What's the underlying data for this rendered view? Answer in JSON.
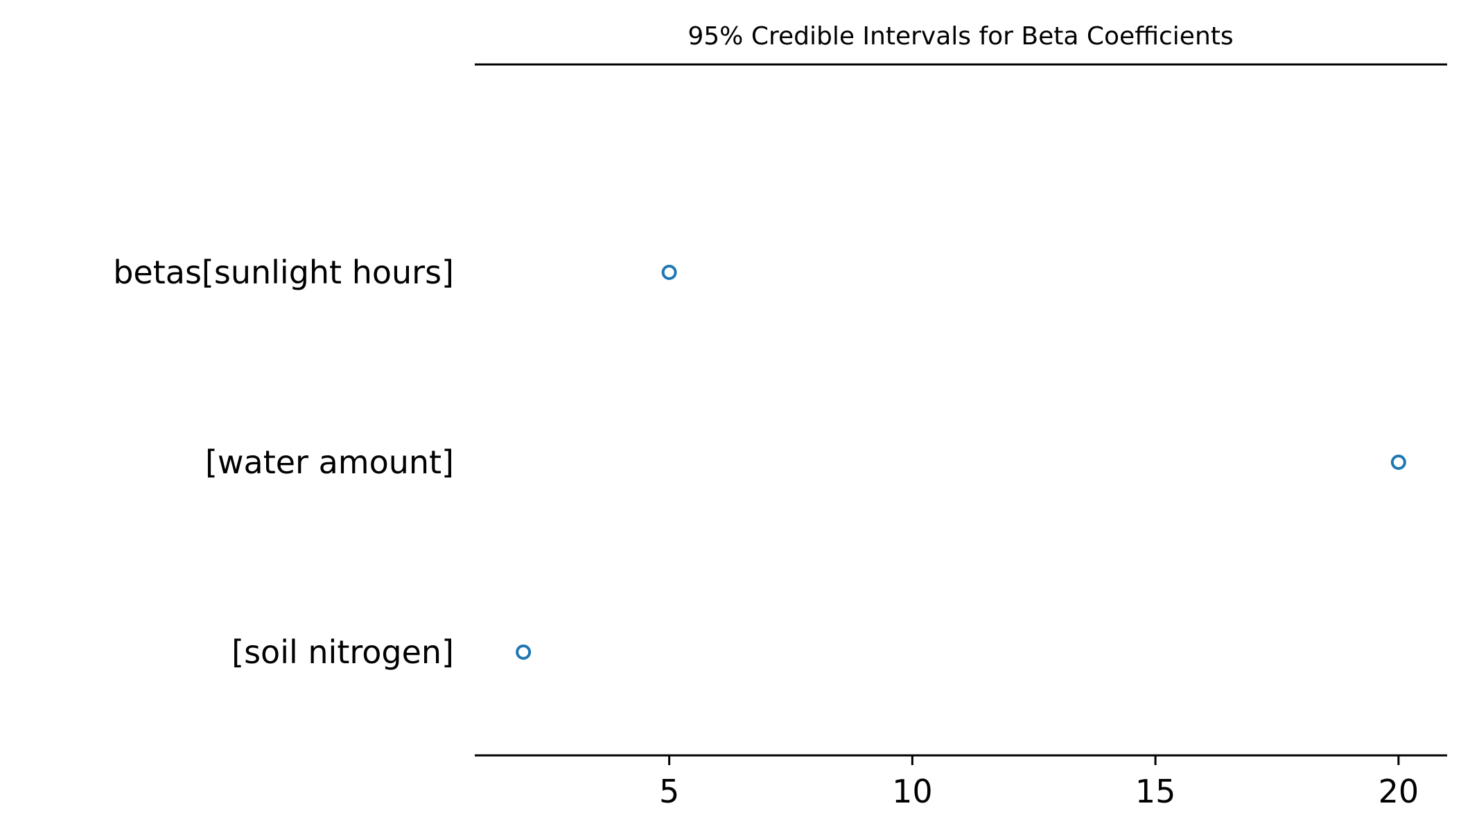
{
  "chart_data": {
    "type": "scatter",
    "title": "95% Credible Intervals for Beta Coefficients",
    "xlabel": "",
    "ylabel": "",
    "xlim": [
      1,
      21
    ],
    "x_ticks": [
      5,
      10,
      15,
      20
    ],
    "x_tick_labels": [
      "5",
      "10",
      "15",
      "20"
    ],
    "categories": [
      "betas[sunlight hours]",
      "[water amount]",
      "[soil nitrogen]"
    ],
    "values": [
      5.0,
      20.0,
      2.0
    ],
    "marker": "open-circle",
    "grid": false,
    "legend": "none",
    "colors": {
      "marker": "#1f77b4",
      "axis": "#000000",
      "text": "#000000"
    }
  }
}
